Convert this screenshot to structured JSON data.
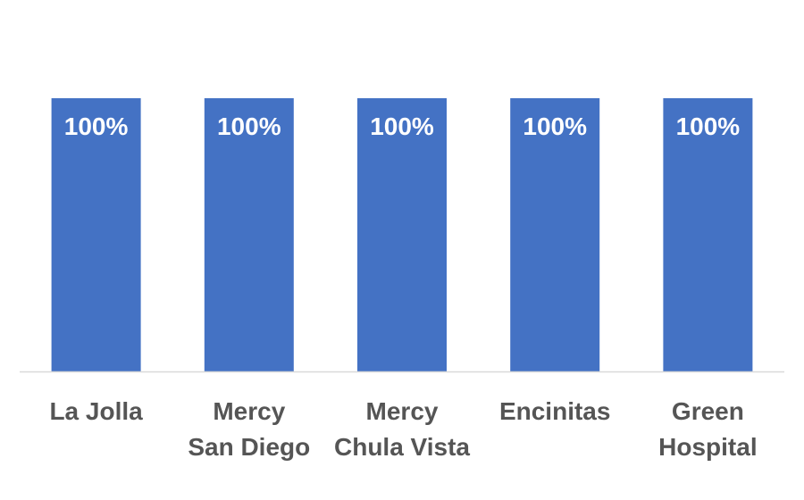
{
  "chart_data": {
    "type": "bar",
    "title": "",
    "xlabel": "",
    "ylabel": "",
    "ylim": [
      0,
      1
    ],
    "grid": false,
    "legend": "none",
    "categories": [
      "La Jolla",
      "Mercy San Diego",
      "Mercy Chula Vista",
      "Encinitas",
      "Green Hospital"
    ],
    "category_lines": [
      [
        "La Jolla"
      ],
      [
        "Mercy",
        "San Diego"
      ],
      [
        "Mercy",
        "Chula Vista"
      ],
      [
        "Encinitas"
      ],
      [
        "Green",
        "Hospital"
      ]
    ],
    "values": [
      1,
      1,
      1,
      1,
      1
    ],
    "data_labels": [
      "100%",
      "100%",
      "100%",
      "100%",
      "100%"
    ],
    "colors": {
      "bar": "#4472C4",
      "axis": "#D9D9D9",
      "bar_label": "#FFFFFF",
      "tick_label": "#555555"
    }
  }
}
